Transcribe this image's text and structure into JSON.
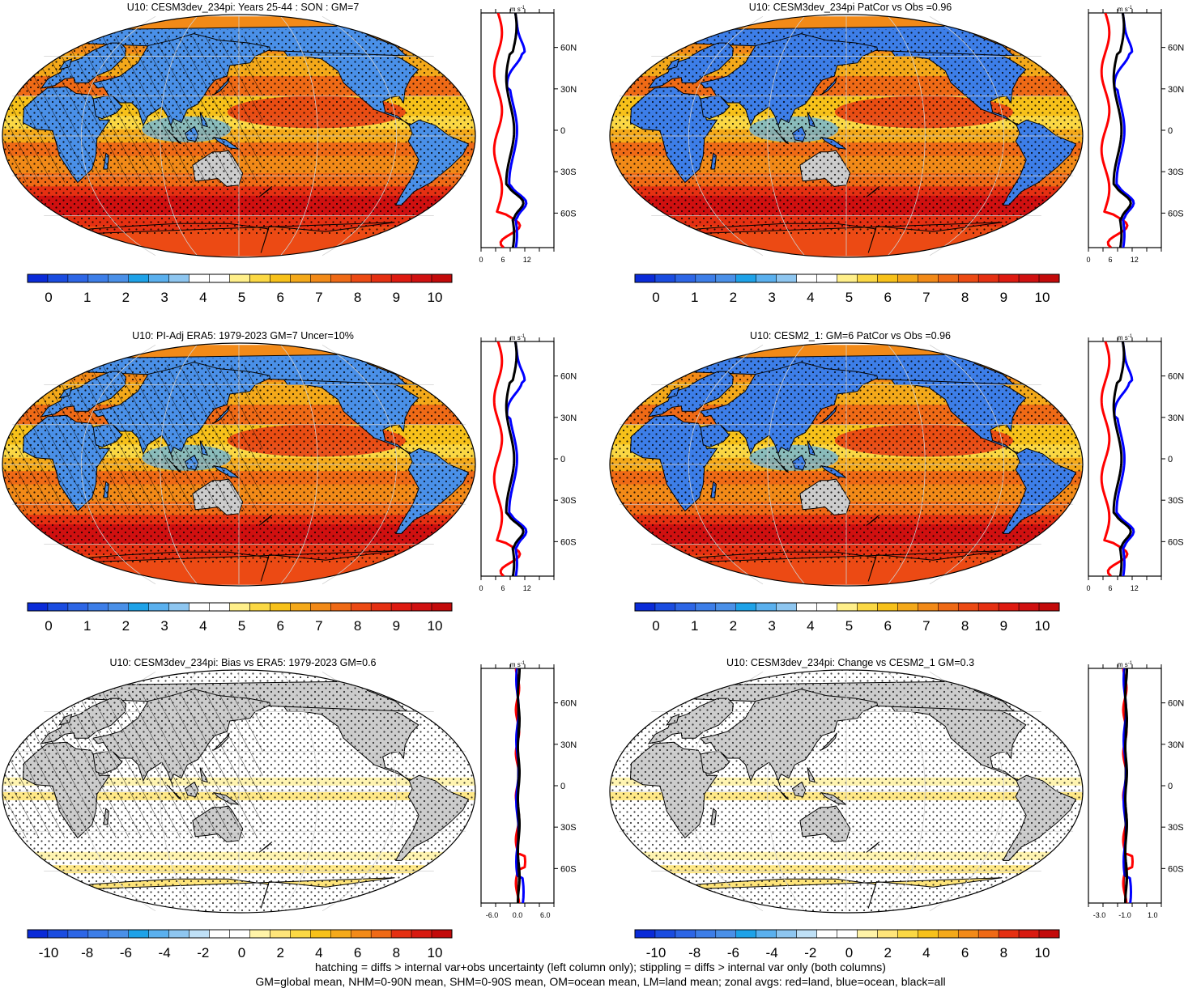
{
  "panels": [
    {
      "title": "U10: CESM3dev_234pi: Years 25-44 : SON : GM=7",
      "type": "clim",
      "cbar_labels": [
        "0",
        "1",
        "2",
        "3",
        "4",
        "5",
        "6",
        "7",
        "8",
        "9",
        "10"
      ],
      "zonal_ticks": [
        "0",
        "6",
        "12"
      ],
      "hatch": true
    },
    {
      "title": "U10: CESM3dev_234pi PatCor vs Obs =0.96",
      "type": "clim",
      "cbar_labels": [
        "0",
        "1",
        "2",
        "3",
        "4",
        "5",
        "6",
        "7",
        "8",
        "9",
        "10"
      ],
      "zonal_ticks": [
        "0",
        "6",
        "12"
      ],
      "hatch": false
    },
    {
      "title": "U10: PI-Adj ERA5: 1979-2023 GM=7 Uncer=10%",
      "type": "clim",
      "cbar_labels": [
        "0",
        "1",
        "2",
        "3",
        "4",
        "5",
        "6",
        "7",
        "8",
        "9",
        "10"
      ],
      "zonal_ticks": [
        "0",
        "6",
        "12"
      ],
      "hatch": true
    },
    {
      "title": "U10: CESM2_1: GM=6 PatCor vs Obs =0.96",
      "type": "clim",
      "cbar_labels": [
        "0",
        "1",
        "2",
        "3",
        "4",
        "5",
        "6",
        "7",
        "8",
        "9",
        "10"
      ],
      "zonal_ticks": [
        "0",
        "6",
        "12"
      ],
      "hatch": false
    },
    {
      "title": "U10: CESM3dev_234pi: Bias vs ERA5: 1979-2023  GM=0.6",
      "type": "diff",
      "cbar_labels": [
        "-10",
        "-8",
        "-6",
        "-4",
        "-2",
        "0",
        "2",
        "4",
        "6",
        "8",
        "10"
      ],
      "zonal_ticks": [
        "-6.0",
        "0.0",
        "6.0"
      ],
      "hatch": true
    },
    {
      "title": "U10: CESM3dev_234pi: Change vs CESM2_1 GM=0.3",
      "type": "diff",
      "cbar_labels": [
        "-10",
        "-8",
        "-6",
        "-4",
        "-2",
        "0",
        "2",
        "4",
        "6",
        "8",
        "10"
      ],
      "zonal_ticks": [
        "-3.0",
        "-1.0",
        "1.0"
      ],
      "hatch": false
    }
  ],
  "zonal_units": "m s",
  "zonal_units_exp": "-1",
  "lat_labels": [
    "60N",
    "30N",
    "0",
    "30S",
    "60S"
  ],
  "colors": {
    "clim_scale": [
      "#0a2bd8",
      "#1a4ce0",
      "#2d66e6",
      "#3d7ee8",
      "#4a90e8",
      "#1ea2e8",
      "#5ab0ee",
      "#8ec6f0",
      "#ffffff",
      "#ffffff",
      "#ffef8a",
      "#fbd844",
      "#f7c11a",
      "#f4a91a",
      "#f28a18",
      "#ef6a16",
      "#ec4a14",
      "#e53012",
      "#de1a10",
      "#d01010",
      "#c30a0a"
    ],
    "diff_scale": [
      "#0a2bd8",
      "#1a4ce0",
      "#2d66e6",
      "#3d7ee8",
      "#4a90e8",
      "#1ea2e8",
      "#5ab0ee",
      "#8ec6f0",
      "#bfe0f6",
      "#ffffff",
      "#ffffff",
      "#fff3a8",
      "#ffe57a",
      "#fbd844",
      "#f7c11a",
      "#f4a91a",
      "#f28a18",
      "#ef6a16",
      "#e53012",
      "#d81a10",
      "#c30a0a"
    ],
    "land_gray": "#cccccc",
    "zonal_land": "#ff0000",
    "zonal_ocean": "#0000ff",
    "zonal_all": "#000000"
  },
  "footer": {
    "line1": "hatching = diffs > internal var+obs uncertainty (left column only); stippling = diffs > internal var only (both columns)",
    "line2": "GM=global mean, NHM=0-90N mean, SHM=0-90S mean, OM=ocean mean, LM=land mean; zonal avgs: red=land, blue=ocean, black=all"
  }
}
